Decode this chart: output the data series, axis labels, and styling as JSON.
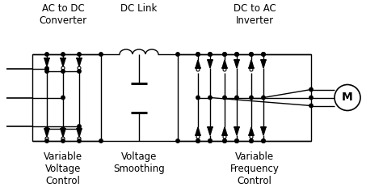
{
  "bg_color": "#ffffff",
  "labels": {
    "top_left": "AC to DC\nConverter",
    "top_mid": "DC Link",
    "top_right": "DC to AC\nInverter",
    "bot_left": "Variable\nVoltage\nControl",
    "bot_mid": "Voltage\nSmoothing",
    "bot_right": "Variable\nFrequency\nControl"
  },
  "figsize": [
    4.74,
    2.42
  ],
  "dpi": 100
}
